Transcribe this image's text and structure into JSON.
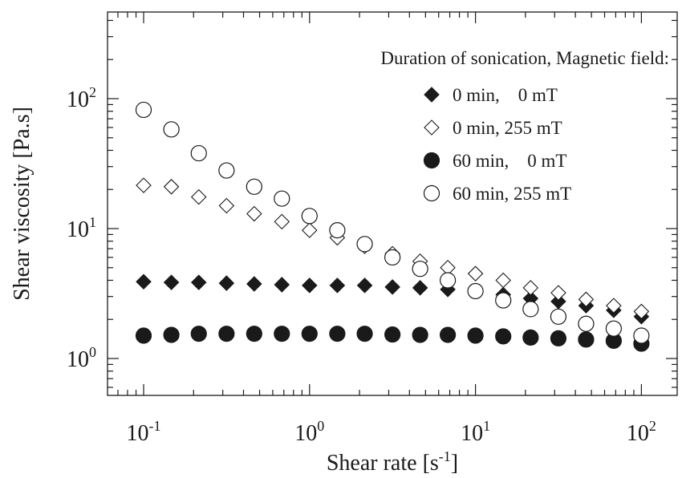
{
  "chart_data": {
    "type": "scatter",
    "xlabel": "Shear rate [s",
    "xlabel_sup": "-1",
    "xlabel_tail": "]",
    "ylabel": "Shear viscosity [Pa.s]",
    "xscale": "log",
    "yscale": "log",
    "xlim": [
      0.05,
      200
    ],
    "ylim": [
      0.5,
      500
    ],
    "x_ticks": [
      {
        "value": 0.1,
        "base": "10",
        "exp": "-1"
      },
      {
        "value": 1,
        "base": "10",
        "exp": "0"
      },
      {
        "value": 10,
        "base": "10",
        "exp": "1"
      },
      {
        "value": 100,
        "base": "10",
        "exp": "2"
      }
    ],
    "y_ticks": [
      {
        "value": 1,
        "base": "10",
        "exp": "0"
      },
      {
        "value": 10,
        "base": "10",
        "exp": "1"
      },
      {
        "value": 100,
        "base": "10",
        "exp": "2"
      }
    ],
    "grid": false,
    "legend": {
      "title": "Duration of sonication, Magnetic field:",
      "placement": "top-right"
    },
    "x": [
      0.1,
      0.147,
      0.215,
      0.316,
      0.464,
      0.681,
      1.0,
      1.47,
      2.15,
      3.16,
      4.64,
      6.81,
      10.0,
      14.7,
      21.5,
      31.6,
      46.4,
      68.1,
      100.0
    ],
    "series": [
      {
        "name": "0 min,    0 mT",
        "marker": "diamond",
        "fill": "filled",
        "values": [
          3.9,
          3.85,
          3.85,
          3.8,
          3.75,
          3.7,
          3.65,
          3.65,
          3.65,
          3.55,
          3.5,
          3.4,
          3.3,
          3.1,
          2.9,
          2.75,
          2.55,
          2.35,
          2.1
        ]
      },
      {
        "name": "0 min, 255 mT",
        "marker": "diamond",
        "fill": "open",
        "values": [
          21.5,
          21.0,
          17.5,
          15.0,
          13.0,
          11.3,
          9.7,
          8.5,
          7.3,
          6.4,
          5.6,
          5.0,
          4.5,
          4.0,
          3.5,
          3.2,
          2.85,
          2.55,
          2.3
        ]
      },
      {
        "name": "60 min,    0 mT",
        "marker": "circle",
        "fill": "filled",
        "values": [
          1.5,
          1.52,
          1.55,
          1.55,
          1.55,
          1.55,
          1.55,
          1.55,
          1.55,
          1.53,
          1.52,
          1.52,
          1.5,
          1.48,
          1.45,
          1.43,
          1.4,
          1.37,
          1.3
        ]
      },
      {
        "name": "60 min, 255 mT",
        "marker": "circle",
        "fill": "open",
        "values": [
          82,
          58,
          38,
          28,
          21,
          17,
          12.5,
          9.7,
          7.6,
          6.0,
          4.9,
          4.0,
          3.3,
          2.8,
          2.4,
          2.1,
          1.85,
          1.7,
          1.5
        ]
      }
    ]
  }
}
